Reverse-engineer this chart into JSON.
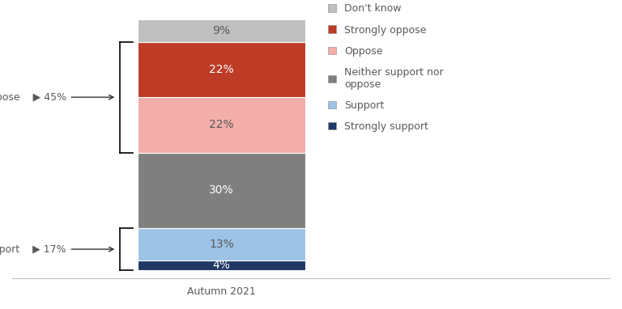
{
  "segments": [
    {
      "label": "Strongly support",
      "value": 4,
      "color": "#1F3864"
    },
    {
      "label": "Support",
      "value": 13,
      "color": "#9DC3E6"
    },
    {
      "label": "Neither support nor oppose",
      "value": 30,
      "color": "#7F7F7F"
    },
    {
      "label": "Oppose",
      "value": 22,
      "color": "#F4AEAA"
    },
    {
      "label": "Strongly oppose",
      "value": 22,
      "color": "#BE3B26"
    },
    {
      "label": "Don't know",
      "value": 9,
      "color": "#BFBFBF"
    }
  ],
  "total_support": 17,
  "total_oppose": 45,
  "xlabel": "Autumn 2021",
  "background_color": "#ffffff",
  "text_color": "#595959",
  "label_color_dark": "#ffffff",
  "label_color_light": "#595959",
  "font_size_bar_labels": 10,
  "font_size_annot": 9,
  "font_size_legend": 9,
  "font_size_axis": 9,
  "legend_items": [
    {
      "label": "Don't know",
      "color": "#BFBFBF"
    },
    {
      "label": "Strongly oppose",
      "color": "#BE3B26"
    },
    {
      "label": "Oppose",
      "color": "#F4AEAA"
    },
    {
      "label": "Neither support nor\noppose",
      "color": "#7F7F7F"
    },
    {
      "label": "Support",
      "color": "#9DC3E6"
    },
    {
      "label": "Strongly support",
      "color": "#1F3864"
    }
  ]
}
